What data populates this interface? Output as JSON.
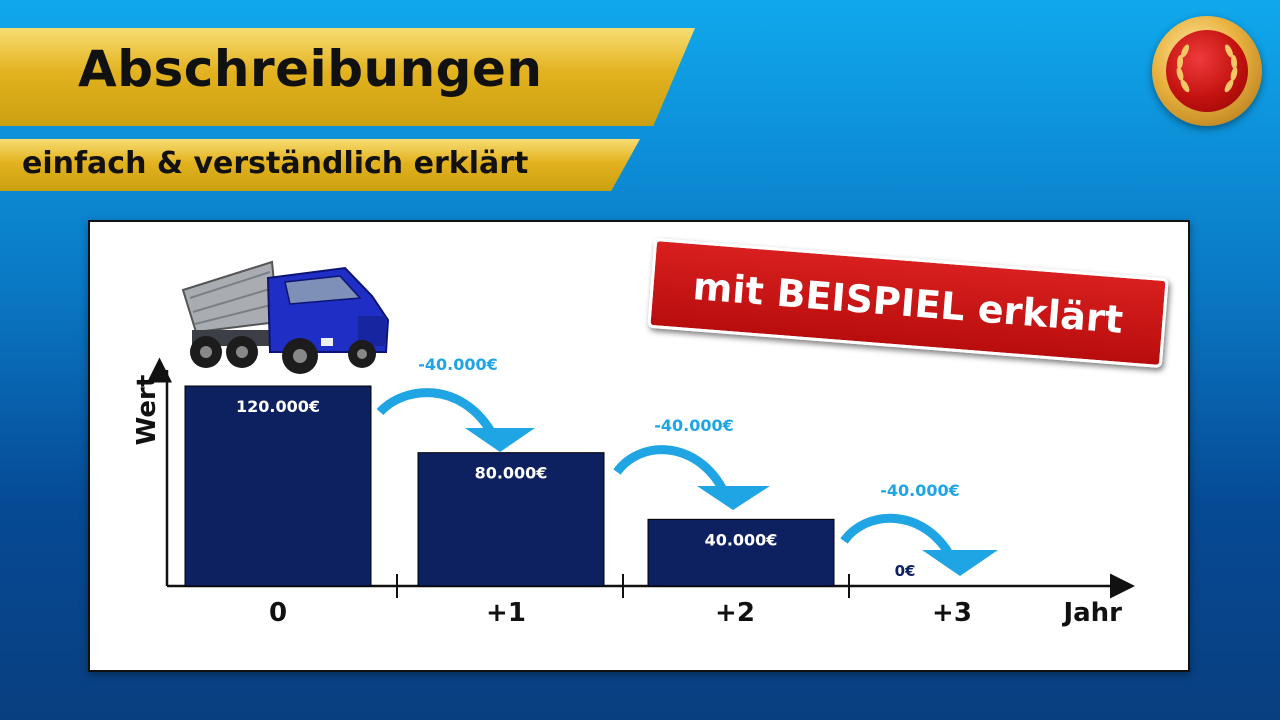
{
  "header": {
    "title": "Abschreibungen",
    "subtitle": "einfach & verständlich erklärt"
  },
  "stamp": {
    "text": "mit BEISPIEL erklärt"
  },
  "colors": {
    "bar": "#0d2060",
    "arrow": "#1fa5e3",
    "banner": "#e3b21f",
    "stamp": "#c8161a"
  },
  "icons": {
    "vehicle": "dump-truck-icon",
    "badge": "laurel-medal-icon"
  },
  "chart_data": {
    "type": "bar",
    "categories": [
      "0",
      "+1",
      "+2",
      "+3"
    ],
    "values": [
      120000,
      80000,
      40000,
      0
    ],
    "value_labels": [
      "120.000€",
      "80.000€",
      "40.000€",
      "0€"
    ],
    "step_labels": [
      "-40.000€",
      "-40.000€",
      "-40.000€"
    ],
    "xlabel": "Jahr",
    "ylabel": "Wert",
    "ylim": [
      0,
      120000
    ],
    "grid": false,
    "legend": "none"
  }
}
